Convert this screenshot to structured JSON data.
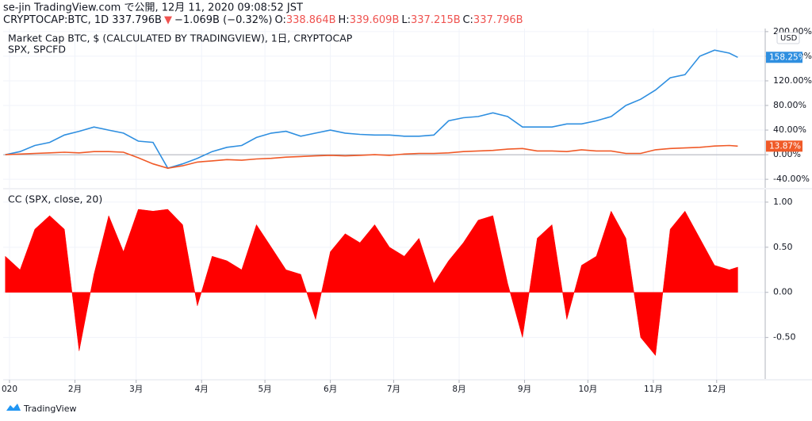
{
  "header": {
    "line1": "se-jin TradingView.com で公開, 12月 11, 2020 09:08:52 JST",
    "line2": [
      {
        "text": "CRYPTOCAP:BTC, 1D 337.796B",
        "color": "#131722"
      },
      {
        "text": "▼",
        "color": "#ef5350"
      },
      {
        "text": "−1.069B (−0.32%)",
        "color": "#131722"
      },
      {
        "text": "O:",
        "color": "#131722"
      },
      {
        "text": "338.864B",
        "color": "#ef5350"
      },
      {
        "text": "H:",
        "color": "#131722"
      },
      {
        "text": "339.609B",
        "color": "#ef5350"
      },
      {
        "text": "L:",
        "color": "#131722"
      },
      {
        "text": "337.215B",
        "color": "#ef5350"
      },
      {
        "text": "C:",
        "color": "#131722"
      },
      {
        "text": "337.796B",
        "color": "#ef5350"
      }
    ]
  },
  "chart_data": [
    {
      "type": "line",
      "title": "Market Cap BTC, $ (CALCULATED BY TRADINGVIEW), 1日, CRYPTOCAP",
      "subtitle": "SPX, SPCFD",
      "currency": "USD",
      "x": [
        -2,
        5,
        12,
        19,
        26,
        33,
        40,
        47,
        54,
        61,
        68,
        75,
        82,
        89,
        96,
        103,
        110,
        117,
        124,
        131,
        138,
        145,
        152,
        159,
        166,
        173,
        180,
        187,
        194,
        201,
        208,
        215,
        222,
        229,
        236,
        243,
        250,
        257,
        264,
        271,
        278,
        285,
        292,
        299,
        306,
        313,
        320,
        327,
        334,
        341,
        345
      ],
      "series": [
        {
          "name": "Market Cap BTC",
          "color": "#2f8fe0",
          "last_value_label": "158.25%",
          "values": [
            0,
            5,
            15,
            20,
            32,
            38,
            45,
            40,
            35,
            22,
            20,
            -22,
            -15,
            -6,
            5,
            12,
            15,
            28,
            35,
            38,
            30,
            35,
            40,
            35,
            33,
            32,
            32,
            30,
            30,
            32,
            55,
            60,
            62,
            68,
            62,
            45,
            45,
            45,
            50,
            50,
            55,
            62,
            80,
            90,
            105,
            125,
            130,
            160,
            170,
            165,
            158.25
          ]
        },
        {
          "name": "SPX",
          "color": "#f05a28",
          "last_value_label": "13.87%",
          "values": [
            0,
            1,
            2,
            3,
            4,
            3,
            5,
            5,
            4,
            -5,
            -15,
            -22,
            -18,
            -12,
            -10,
            -8,
            -9,
            -7,
            -6,
            -4,
            -3,
            -2,
            -1,
            -2,
            -1,
            0,
            -1,
            1,
            2,
            2,
            3,
            5,
            6,
            7,
            9,
            10,
            6,
            6,
            5,
            8,
            6,
            6,
            2,
            2,
            8,
            10,
            11,
            12,
            14,
            15,
            13.87
          ]
        }
      ],
      "xlim": [
        -3,
        358
      ],
      "ylim": [
        -54,
        205
      ],
      "yticks": [
        {
          "value": 200,
          "label": "200.00%"
        },
        {
          "value": 160,
          "label": "160.00%"
        },
        {
          "value": 120,
          "label": "120.00%"
        },
        {
          "value": 80,
          "label": "80.00%"
        },
        {
          "value": 40,
          "label": "40.00%"
        },
        {
          "value": 0,
          "label": "0.00%"
        },
        {
          "value": -40,
          "label": "-40.00%"
        }
      ],
      "grid": true
    },
    {
      "type": "area",
      "title": "CC (SPX, close, 20)",
      "x": [
        -2,
        5,
        12,
        19,
        26,
        33,
        40,
        47,
        54,
        61,
        68,
        75,
        82,
        89,
        96,
        103,
        110,
        117,
        124,
        131,
        138,
        145,
        152,
        159,
        166,
        173,
        180,
        187,
        194,
        201,
        208,
        215,
        222,
        229,
        236,
        243,
        250,
        257,
        264,
        271,
        278,
        285,
        292,
        299,
        306,
        313,
        320,
        327,
        334,
        341,
        345
      ],
      "series": [
        {
          "name": "CC",
          "color": "#ff0000",
          "values": [
            0.4,
            0.25,
            0.7,
            0.85,
            0.7,
            -0.65,
            0.2,
            0.85,
            0.45,
            0.92,
            0.9,
            0.92,
            0.75,
            -0.15,
            0.4,
            0.35,
            0.25,
            0.75,
            0.5,
            0.25,
            0.2,
            -0.3,
            0.45,
            0.65,
            0.55,
            0.75,
            0.5,
            0.4,
            0.6,
            0.1,
            0.35,
            0.55,
            0.8,
            0.85,
            0.1,
            -0.5,
            0.6,
            0.75,
            -0.3,
            0.3,
            0.4,
            0.9,
            0.6,
            -0.5,
            -0.7,
            0.7,
            0.9,
            0.6,
            0.3,
            0.25,
            0.28
          ]
        }
      ],
      "xlim": [
        -3,
        358
      ],
      "ylim": [
        -0.96,
        1.14
      ],
      "yticks": [
        {
          "value": 1,
          "label": "1.00"
        },
        {
          "value": 0.5,
          "label": "0.50"
        },
        {
          "value": 0,
          "label": "0.00"
        },
        {
          "value": -0.5,
          "label": "-0.50"
        }
      ],
      "xticks": [
        {
          "value": 0,
          "label": "020"
        },
        {
          "value": 31,
          "label": "2月"
        },
        {
          "value": 60,
          "label": "3月"
        },
        {
          "value": 91,
          "label": "4月"
        },
        {
          "value": 121,
          "label": "5月"
        },
        {
          "value": 152,
          "label": "6月"
        },
        {
          "value": 182,
          "label": "7月"
        },
        {
          "value": 213,
          "label": "8月"
        },
        {
          "value": 244,
          "label": "9月"
        },
        {
          "value": 274,
          "label": "10月"
        },
        {
          "value": 305,
          "label": "11月"
        },
        {
          "value": 335,
          "label": "12月"
        }
      ],
      "grid": true
    }
  ],
  "footer": {
    "brand": "TradingView"
  }
}
